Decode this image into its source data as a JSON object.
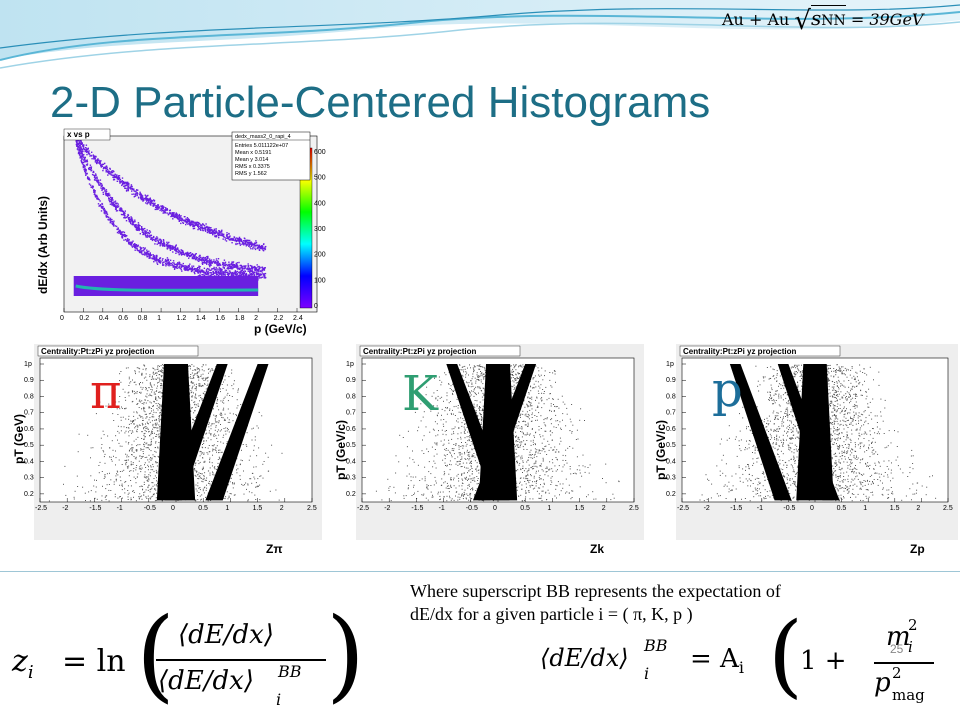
{
  "slide": {
    "title": "2-D Particle-Centered Histograms",
    "header_formula": {
      "lhs": "Au + Au",
      "sqrt_var": "s",
      "sub": "NN",
      "rhs": "= 39GeV"
    },
    "page_number": "25"
  },
  "top_plot": {
    "title": "x vs p",
    "ylabel": "dE/dx (Arb Units)",
    "xlabel": "p (GeV/c)",
    "x_ticks": [
      "0",
      "0.2",
      "0.4",
      "0.6",
      "0.8",
      "1",
      "1.2",
      "1.4",
      "1.6",
      "1.8",
      "2",
      "2.2",
      "2.4"
    ],
    "stats": {
      "name": "dedx_mass2_0_rapi_4",
      "entries": "Entries  5.011122e+07",
      "mean_x": "Mean x      0.5191",
      "mean_y": "Mean y       3.014",
      "rms_x": "RMS x      0.3375",
      "rms_y": "RMS y        1.562"
    },
    "colorbar_ticks": [
      "600",
      "500",
      "400",
      "300",
      "200",
      "100",
      "0"
    ],
    "colors": {
      "points": "#6a1fe0",
      "band": "#22b5b0",
      "colorbar": [
        "#ff0000",
        "#ffff00",
        "#00ff00",
        "#00ffff",
        "#0000ff",
        "#7b00ff"
      ]
    }
  },
  "proj_plots": [
    {
      "key": "pi",
      "title": "Centrality:Pt:zPi yz projection",
      "particle": "π",
      "particle_color": "#e0201e",
      "ylabel": "pT (GeV)",
      "xlabel": "Zπ",
      "yaxis_label": "p",
      "peaks": [
        0.0,
        0.85,
        1.6
      ]
    },
    {
      "key": "k",
      "title": "Centrality:Pt:zPi yz projection",
      "particle": "K",
      "particle_color": "#2f9e72",
      "ylabel": "pT (GeV/c)",
      "xlabel": "Zk",
      "yaxis_label": "p",
      "peaks": [
        -0.85,
        0.0,
        0.6
      ]
    },
    {
      "key": "p",
      "title": "Centrality:Pt:zPi yz projection",
      "particle": "p",
      "particle_color": "#1d6e9a",
      "ylabel": "pT (GeV/c)",
      "xlabel": "Zp",
      "yaxis_label": "p",
      "peaks": [
        -1.5,
        -0.6,
        0.0
      ]
    }
  ],
  "proj_axes": {
    "x_ticks": [
      "-2.5",
      "-2",
      "-1.5",
      "-1",
      "-0.5",
      "0",
      "0.5",
      "1",
      "1.5",
      "2",
      "2.5"
    ],
    "y_ticks": [
      "1",
      "0.9",
      "0.8",
      "0.7",
      "0.6",
      "0.5",
      "0.4",
      "0.3",
      "0.2"
    ]
  },
  "note": {
    "line1": "Where  superscript BB represents the expectation of",
    "line2": "dE/dx for a given particle i = ( π, K, p )"
  },
  "equation_left": {
    "lhs": "z",
    "lhs_sub": "i",
    "fn": "= ln",
    "num": "⟨dE/dx⟩",
    "den": "⟨dE/dx⟩",
    "den_sup": "BB",
    "den_sub": "i"
  },
  "equation_right": {
    "lhs": "⟨dE/dx⟩",
    "sup": "BB",
    "sub": "i",
    "eq": "= A",
    "a_sub": "i",
    "one": "1 +",
    "num": "m",
    "num_sup": "2",
    "num_sub": "i",
    "den": "p",
    "den_sup": "2",
    "den_sub": "mag"
  }
}
